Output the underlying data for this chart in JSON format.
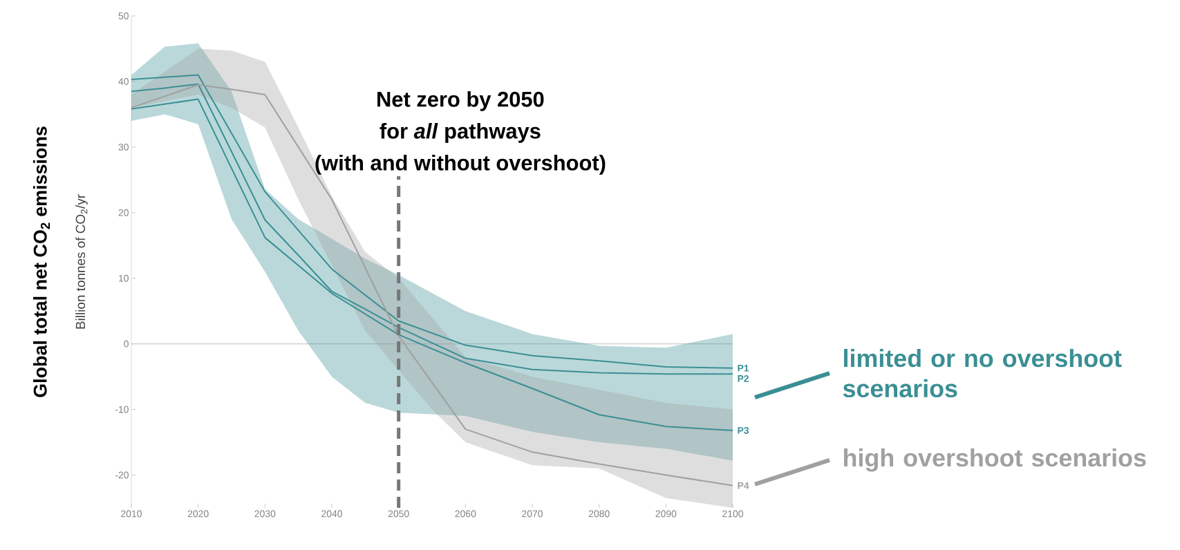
{
  "chart_data": {
    "type": "line",
    "title": "Global total net CO$_{2}$ emissions",
    "ylabel": "Billion tonnes of CO$_{2}$/yr",
    "xlim": [
      2010,
      2100
    ],
    "ylim": [
      -25,
      50
    ],
    "xticks": [
      2010,
      2020,
      2030,
      2040,
      2050,
      2060,
      2070,
      2080,
      2090,
      2100
    ],
    "yticks": [
      -20,
      -10,
      0,
      10,
      20,
      30,
      40,
      50
    ],
    "marker": "none",
    "line_style": "solid",
    "ref_lines": [
      {
        "axis": "y",
        "value": 0,
        "color": "#cccccc",
        "line_style": "solid"
      },
      {
        "axis": "x",
        "value": 2050,
        "color": "#777777",
        "line_style": "dashed"
      }
    ],
    "annotations": [
      "Net zero by 2050",
      "for *all* pathways",
      "(with and without overshoot)",
      "limited or no overshoot scenarios",
      "high overshoot scenarios"
    ],
    "series": [
      {
        "name": "P1",
        "color": "#3a8f94",
        "x": [
          2010,
          2020,
          2030,
          2040,
          2050,
          2060,
          2070,
          2080,
          2090,
          2100
        ],
        "values": [
          40.3,
          41,
          23.2,
          11.4,
          3.5,
          -0.2,
          -1.8,
          -2.6,
          -3.5,
          -3.7
        ]
      },
      {
        "name": "P2",
        "color": "#3a8f94",
        "x": [
          2010,
          2015,
          2020,
          2025,
          2030,
          2035,
          2040,
          2045,
          2050,
          2060,
          2070,
          2080,
          2090,
          2100
        ],
        "values": [
          38.5,
          39,
          39.6,
          29.3,
          18.9,
          13.5,
          8,
          5.3,
          2.5,
          -2.2,
          -3.9,
          -4.4,
          -4.6,
          -4.6
        ],
        "lower": [
          34,
          35,
          33.5,
          19,
          11,
          2,
          -5,
          -9,
          -10.5,
          -11,
          -13.4,
          -15,
          -16,
          -17.8
        ],
        "upper": [
          41,
          45.3,
          45.8,
          38.5,
          23.6,
          19,
          16,
          13,
          10.5,
          5,
          1.5,
          -0.3,
          -0.6,
          1.5
        ]
      },
      {
        "name": "P3",
        "color": "#3a8f94",
        "x": [
          2010,
          2020,
          2030,
          2040,
          2050,
          2060,
          2070,
          2080,
          2090,
          2100
        ],
        "values": [
          35.8,
          37.3,
          16.2,
          7.7,
          1.4,
          -2.9,
          -6.8,
          -10.8,
          -12.6,
          -13.2
        ]
      },
      {
        "name": "P4",
        "color": "#a0a0a0",
        "x": [
          2010,
          2020,
          2025,
          2030,
          2035,
          2040,
          2045,
          2050,
          2055,
          2060,
          2070,
          2080,
          2090,
          2100
        ],
        "values": [
          36,
          39.5,
          38.8,
          38,
          30,
          22,
          11.6,
          1.2,
          -5.9,
          -13,
          -16.5,
          -18.3,
          -20,
          -21.6
        ],
        "lower": [
          36,
          38,
          36,
          33,
          22,
          12,
          2,
          -4,
          -10,
          -15,
          -18.5,
          -19,
          -23.5,
          -25
        ],
        "upper": [
          38,
          45,
          44.7,
          43,
          33,
          22.5,
          14,
          10,
          4,
          -2,
          -5,
          -7,
          -9,
          -10
        ]
      }
    ]
  }
}
